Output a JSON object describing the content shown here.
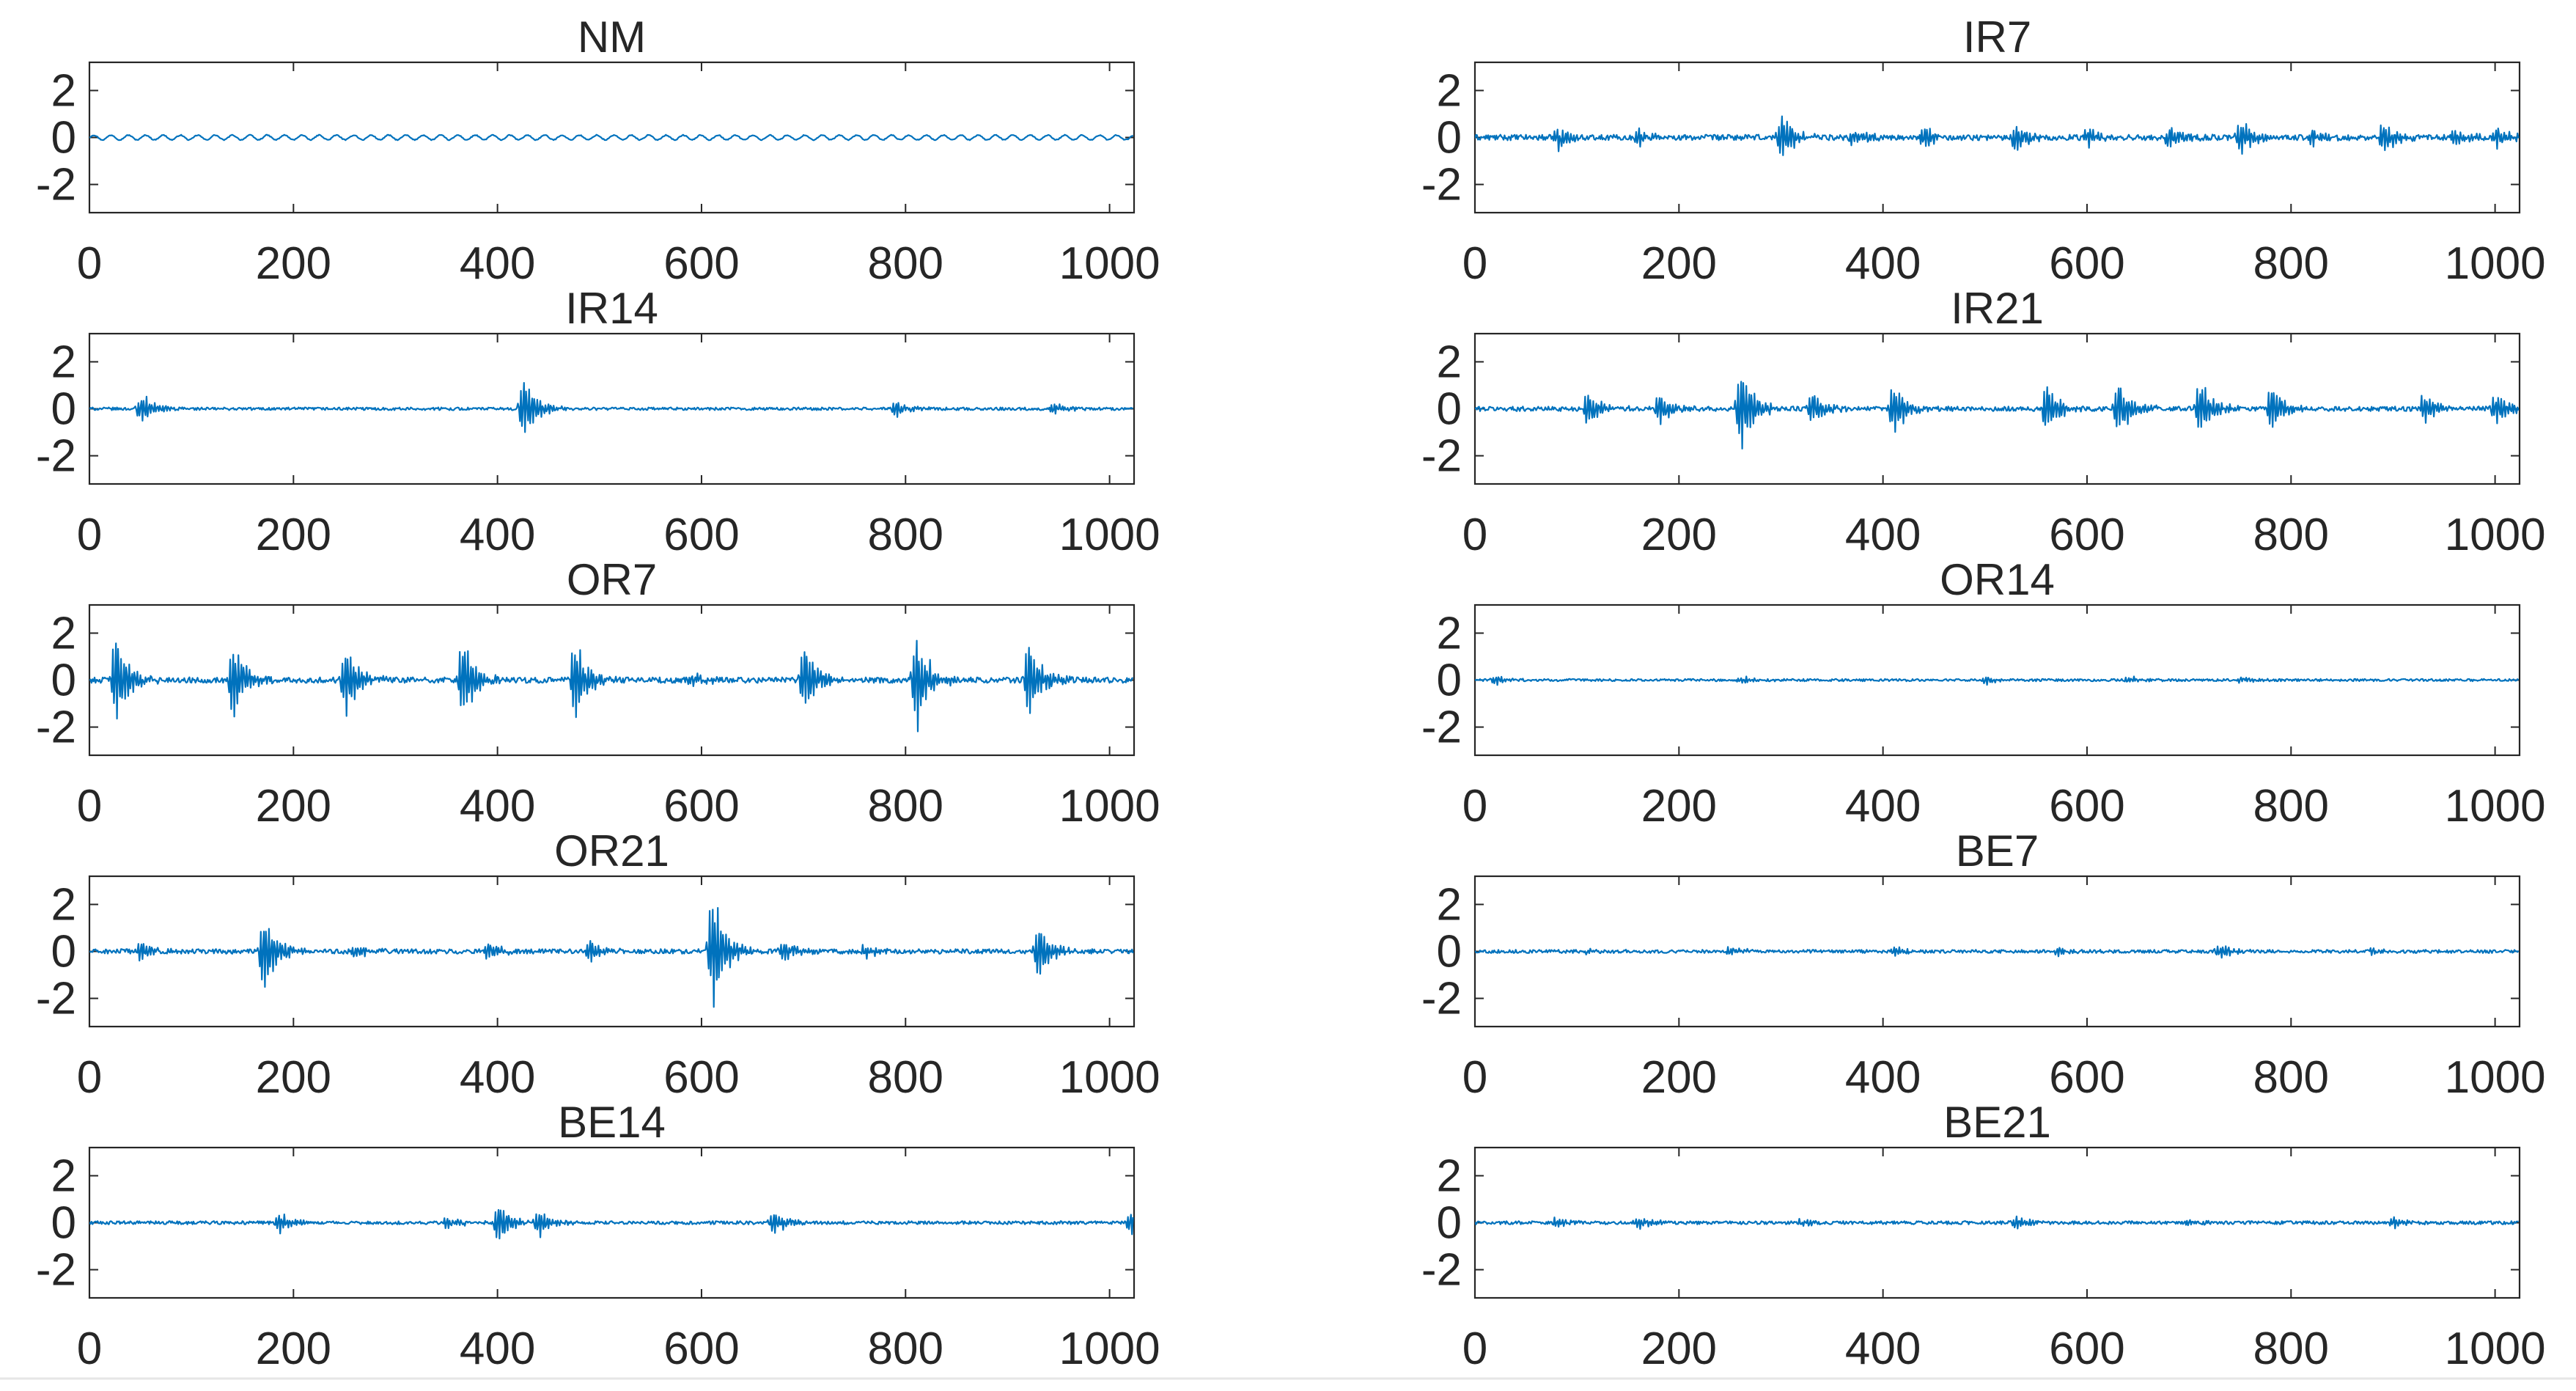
{
  "figure": {
    "description_hidden": false
  },
  "chart_data": [
    {
      "type": "line",
      "title": "NM",
      "xlim": [
        0,
        1024
      ],
      "ylim": [
        -3.2,
        3.2
      ],
      "xticks": [
        0,
        200,
        400,
        600,
        800,
        1000
      ],
      "xtick_labels": [
        "0",
        "200",
        "400",
        "600",
        "800",
        "1000"
      ],
      "yticks": [
        2,
        0,
        -2
      ],
      "ytick_labels": [
        "2",
        "0",
        "-2"
      ],
      "series": [
        {
          "name": "NM",
          "color": "#0072bd",
          "baseline": 0,
          "noise": 0.02,
          "periodic_amplitude": 0.1,
          "period": 17,
          "bursts": []
        }
      ]
    },
    {
      "type": "line",
      "title": "IR7",
      "xlim": [
        0,
        1024
      ],
      "ylim": [
        -3.2,
        3.2
      ],
      "xticks": [
        0,
        200,
        400,
        600,
        800,
        1000
      ],
      "xtick_labels": [
        "0",
        "200",
        "400",
        "600",
        "800",
        "1000"
      ],
      "yticks": [
        2,
        0,
        -2
      ],
      "ytick_labels": [
        "2",
        "0",
        "-2"
      ],
      "series": [
        {
          "name": "IR7",
          "color": "#0072bd",
          "baseline": 0,
          "noise": 0.12,
          "periodic_amplitude": 0,
          "period": 0,
          "bursts": [
            [
              80,
              0.6
            ],
            [
              160,
              0.5
            ],
            [
              300,
              1.3
            ],
            [
              370,
              0.5
            ],
            [
              440,
              0.6
            ],
            [
              530,
              0.8
            ],
            [
              600,
              0.5
            ],
            [
              680,
              0.6
            ],
            [
              750,
              0.9
            ],
            [
              820,
              0.4
            ],
            [
              890,
              0.8
            ],
            [
              960,
              0.5
            ],
            [
              1000,
              0.5
            ]
          ]
        }
      ]
    },
    {
      "type": "line",
      "title": "IR14",
      "xlim": [
        0,
        1024
      ],
      "ylim": [
        -3.2,
        3.2
      ],
      "xticks": [
        0,
        200,
        400,
        600,
        800,
        1000
      ],
      "xtick_labels": [
        "0",
        "200",
        "400",
        "600",
        "800",
        "1000"
      ],
      "yticks": [
        2,
        0,
        -2
      ],
      "ytick_labels": [
        "2",
        "0",
        "-2"
      ],
      "series": [
        {
          "name": "IR14",
          "color": "#0072bd",
          "baseline": 0,
          "noise": 0.06,
          "periodic_amplitude": 0,
          "period": 0,
          "bursts": [
            [
              50,
              0.8
            ],
            [
              425,
              1.7
            ],
            [
              790,
              0.4
            ],
            [
              945,
              0.3
            ]
          ]
        }
      ]
    },
    {
      "type": "line",
      "title": "IR21",
      "xlim": [
        0,
        1024
      ],
      "ylim": [
        -3.2,
        3.2
      ],
      "xticks": [
        0,
        200,
        400,
        600,
        800,
        1000
      ],
      "xtick_labels": [
        "0",
        "200",
        "400",
        "600",
        "800",
        "1000"
      ],
      "yticks": [
        2,
        0,
        -2
      ],
      "ytick_labels": [
        "2",
        "0",
        "-2"
      ],
      "series": [
        {
          "name": "IR21",
          "color": "#0072bd",
          "baseline": 0,
          "noise": 0.1,
          "periodic_amplitude": 0,
          "period": 0,
          "bursts": [
            [
              110,
              0.9
            ],
            [
              180,
              0.9
            ],
            [
              260,
              2.3
            ],
            [
              330,
              0.9
            ],
            [
              410,
              1.5
            ],
            [
              560,
              1.3
            ],
            [
              630,
              1.5
            ],
            [
              710,
              1.5
            ],
            [
              780,
              1.2
            ],
            [
              930,
              0.8
            ],
            [
              1000,
              0.9
            ]
          ]
        }
      ]
    },
    {
      "type": "line",
      "title": "OR7",
      "xlim": [
        0,
        1024
      ],
      "ylim": [
        -3.2,
        3.2
      ],
      "xticks": [
        0,
        200,
        400,
        600,
        800,
        1000
      ],
      "xtick_labels": [
        "0",
        "200",
        "400",
        "600",
        "800",
        "1000"
      ],
      "yticks": [
        2,
        0,
        -2
      ],
      "ytick_labels": [
        "2",
        "0",
        "-2"
      ],
      "series": [
        {
          "name": "OR7",
          "color": "#0072bd",
          "baseline": 0,
          "noise": 0.12,
          "periodic_amplitude": 0,
          "period": 0,
          "bursts": [
            [
              25,
              2.5
            ],
            [
              140,
              2.0
            ],
            [
              250,
              2.0
            ],
            [
              365,
              2.3
            ],
            [
              475,
              2.3
            ],
            [
              590,
              0.4
            ],
            [
              700,
              1.9
            ],
            [
              810,
              2.6
            ],
            [
              920,
              2.0
            ]
          ]
        }
      ]
    },
    {
      "type": "line",
      "title": "OR14",
      "xlim": [
        0,
        1024
      ],
      "ylim": [
        -3.2,
        3.2
      ],
      "xticks": [
        0,
        200,
        400,
        600,
        800,
        1000
      ],
      "xtick_labels": [
        "0",
        "200",
        "400",
        "600",
        "800",
        "1000"
      ],
      "yticks": [
        2,
        0,
        -2
      ],
      "ytick_labels": [
        "2",
        "0",
        "-2"
      ],
      "series": [
        {
          "name": "OR14",
          "color": "#0072bd",
          "baseline": 0,
          "noise": 0.05,
          "periodic_amplitude": 0,
          "period": 0,
          "bursts": [
            [
              20,
              0.25
            ],
            [
              260,
              0.2
            ],
            [
              500,
              0.25
            ],
            [
              640,
              0.2
            ],
            [
              750,
              0.2
            ]
          ]
        }
      ]
    },
    {
      "type": "line",
      "title": "OR21",
      "xlim": [
        0,
        1024
      ],
      "ylim": [
        -3.2,
        3.2
      ],
      "xticks": [
        0,
        200,
        400,
        600,
        800,
        1000
      ],
      "xtick_labels": [
        "0",
        "200",
        "400",
        "600",
        "800",
        "1000"
      ],
      "yticks": [
        2,
        0,
        -2
      ],
      "ytick_labels": [
        "2",
        "0",
        "-2"
      ],
      "series": [
        {
          "name": "OR21",
          "color": "#0072bd",
          "baseline": 0,
          "noise": 0.1,
          "periodic_amplitude": 0,
          "period": 0,
          "bursts": [
            [
              50,
              0.6
            ],
            [
              170,
              2.1
            ],
            [
              260,
              0.4
            ],
            [
              390,
              0.5
            ],
            [
              490,
              0.7
            ],
            [
              610,
              3.2
            ],
            [
              680,
              0.6
            ],
            [
              760,
              0.4
            ],
            [
              930,
              1.5
            ]
          ]
        }
      ]
    },
    {
      "type": "line",
      "title": "BE7",
      "xlim": [
        0,
        1024
      ],
      "ylim": [
        -3.2,
        3.2
      ],
      "xticks": [
        0,
        200,
        400,
        600,
        800,
        1000
      ],
      "xtick_labels": [
        "0",
        "200",
        "400",
        "600",
        "800",
        "1000"
      ],
      "yticks": [
        2,
        0,
        -2
      ],
      "ytick_labels": [
        "2",
        "0",
        "-2"
      ],
      "series": [
        {
          "name": "BE7",
          "color": "#0072bd",
          "baseline": 0,
          "noise": 0.07,
          "periodic_amplitude": 0,
          "period": 0,
          "bursts": [
            [
              110,
              0.2
            ],
            [
              250,
              0.25
            ],
            [
              410,
              0.2
            ],
            [
              570,
              0.2
            ],
            [
              730,
              0.35
            ],
            [
              880,
              0.2
            ]
          ]
        }
      ]
    },
    {
      "type": "line",
      "title": "BE14",
      "xlim": [
        0,
        1024
      ],
      "ylim": [
        -3.2,
        3.2
      ],
      "xticks": [
        0,
        200,
        400,
        600,
        800,
        1000
      ],
      "xtick_labels": [
        "0",
        "200",
        "400",
        "600",
        "800",
        "1000"
      ],
      "yticks": [
        2,
        0,
        -2
      ],
      "ytick_labels": [
        "2",
        "0",
        "-2"
      ],
      "series": [
        {
          "name": "BE14",
          "color": "#0072bd",
          "baseline": 0,
          "noise": 0.07,
          "periodic_amplitude": 0,
          "period": 0,
          "bursts": [
            [
              185,
              0.5
            ],
            [
              350,
              0.3
            ],
            [
              400,
              1.0
            ],
            [
              440,
              0.7
            ],
            [
              670,
              0.6
            ],
            [
              1020,
              0.6
            ]
          ]
        }
      ]
    },
    {
      "type": "line",
      "title": "BE21",
      "xlim": [
        0,
        1024
      ],
      "ylim": [
        -3.2,
        3.2
      ],
      "xticks": [
        0,
        200,
        400,
        600,
        800,
        1000
      ],
      "xtick_labels": [
        "0",
        "200",
        "400",
        "600",
        "800",
        "1000"
      ],
      "yticks": [
        2,
        0,
        -2
      ],
      "ytick_labels": [
        "2",
        "0",
        "-2"
      ],
      "series": [
        {
          "name": "BE21",
          "color": "#0072bd",
          "baseline": 0,
          "noise": 0.07,
          "periodic_amplitude": 0,
          "period": 0,
          "bursts": [
            [
              80,
              0.25
            ],
            [
              160,
              0.3
            ],
            [
              320,
              0.2
            ],
            [
              530,
              0.35
            ],
            [
              700,
              0.2
            ],
            [
              900,
              0.3
            ]
          ]
        }
      ]
    }
  ]
}
